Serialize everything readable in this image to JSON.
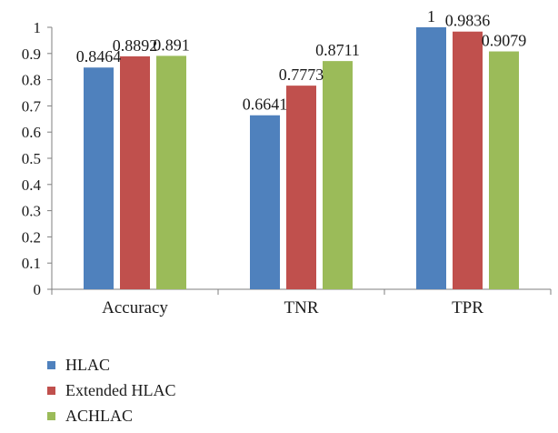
{
  "chart_data": {
    "type": "bar",
    "categories": [
      "Accuracy",
      "TNR",
      "TPR"
    ],
    "series": [
      {
        "name": "HLAC",
        "values": [
          0.8464,
          0.6641,
          1
        ],
        "labels": [
          "0.8464",
          "0.6641",
          "1"
        ],
        "color": "#4f81bd"
      },
      {
        "name": "Extended HLAC",
        "values": [
          0.8892,
          0.7773,
          0.9836
        ],
        "labels": [
          "0.8892",
          "0.7773",
          "0.9836"
        ],
        "color": "#c0504d"
      },
      {
        "name": "ACHLAC",
        "values": [
          0.891,
          0.8711,
          0.9079
        ],
        "labels": [
          "0.891",
          "0.8711",
          "0.9079"
        ],
        "color": "#9bbb59"
      }
    ],
    "ylim": [
      0,
      1
    ],
    "yticks": [
      "0",
      "0.1",
      "0.2",
      "0.3",
      "0.4",
      "0.5",
      "0.6",
      "0.7",
      "0.8",
      "0.9",
      "1"
    ],
    "grid": false,
    "legend_position": "bottom-left"
  }
}
